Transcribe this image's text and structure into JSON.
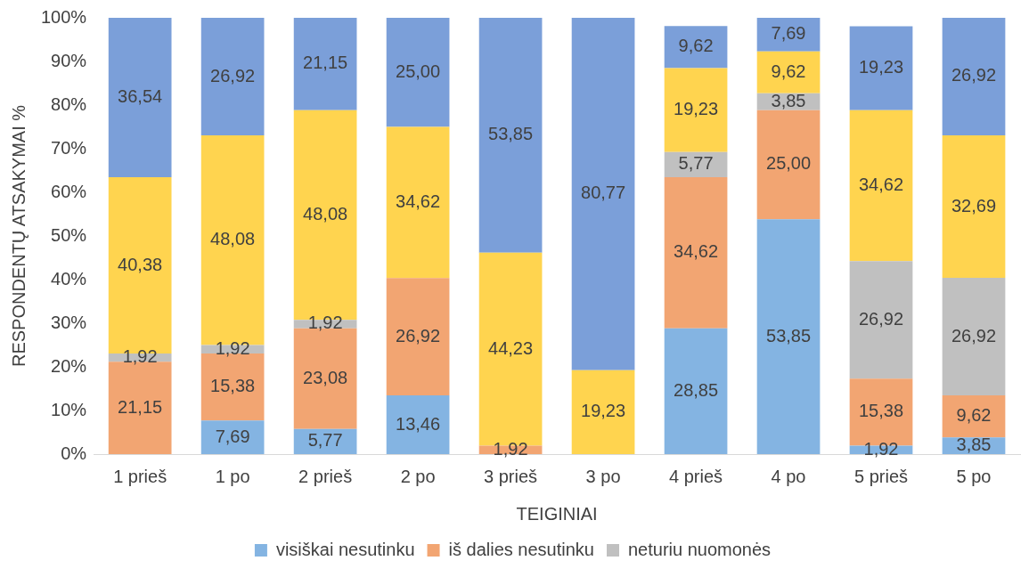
{
  "chart_data": {
    "type": "bar",
    "stacked": true,
    "xlabel": "TEIGINIAI",
    "ylabel": "RESPONDENTŲ ATSAKYMAI %",
    "categories": [
      "1 prieš",
      "1 po",
      "2 prieš",
      "2 po",
      "3 prieš",
      "3 po",
      "4 prieš",
      "4 po",
      "5 prieš",
      "5 po"
    ],
    "ylim": [
      0,
      100
    ],
    "yticks": [
      {
        "value": 0,
        "label": "0%"
      },
      {
        "value": 10,
        "label": "10%"
      },
      {
        "value": 20,
        "label": "20%"
      },
      {
        "value": 30,
        "label": "30%"
      },
      {
        "value": 40,
        "label": "40%"
      },
      {
        "value": 50,
        "label": "50%"
      },
      {
        "value": 60,
        "label": "60%"
      },
      {
        "value": 70,
        "label": "70%"
      },
      {
        "value": 80,
        "label": "80%"
      },
      {
        "value": 90,
        "label": "90%"
      },
      {
        "value": 100,
        "label": "100%"
      }
    ],
    "grid": false,
    "legend": "bottom",
    "series": [
      {
        "name": "visiškai nesutinku",
        "color": "#84b4e2",
        "values": [
          0,
          7.69,
          5.77,
          13.46,
          0,
          0,
          28.85,
          53.85,
          1.92,
          3.85
        ],
        "value_labels": [
          null,
          "7,69",
          "5,77",
          "13,46",
          null,
          null,
          "28,85",
          "53,85",
          "1,92",
          "3,85"
        ]
      },
      {
        "name": "iš dalies nesutinku",
        "color": "#f2a572",
        "values": [
          21.15,
          15.38,
          23.08,
          26.92,
          1.92,
          0,
          34.62,
          25.0,
          15.38,
          9.62
        ],
        "value_labels": [
          "21,15",
          "15,38",
          "23,08",
          "26,92",
          "1,92",
          null,
          "34,62",
          "25,00",
          "15,38",
          "9,62"
        ]
      },
      {
        "name": "neturiu nuomonės",
        "color": "#c0c0c0",
        "values": [
          1.92,
          1.92,
          1.92,
          0,
          0,
          0,
          5.77,
          3.85,
          26.92,
          26.92
        ],
        "value_labels": [
          "1,92",
          "1,92",
          "1,92",
          null,
          null,
          null,
          "5,77",
          "3,85",
          "26,92",
          "26,92"
        ]
      },
      {
        "color": "#ffd44f",
        "values": [
          40.38,
          48.08,
          48.08,
          34.62,
          44.23,
          19.23,
          19.23,
          9.62,
          34.62,
          32.69
        ],
        "value_labels": [
          "40,38",
          "48,08",
          "48,08",
          "34,62",
          "44,23",
          "19,23",
          "19,23",
          "9,62",
          "34,62",
          "32,69"
        ]
      },
      {
        "color": "#7b9fd9",
        "values": [
          36.54,
          26.92,
          21.15,
          25.0,
          53.85,
          80.77,
          9.62,
          7.69,
          19.23,
          26.92
        ],
        "value_labels": [
          "36,54",
          "26,92",
          "21,15",
          "25,00",
          "53,85",
          "80,77",
          "9,62",
          "7,69",
          "19,23",
          "26,92"
        ]
      }
    ]
  }
}
